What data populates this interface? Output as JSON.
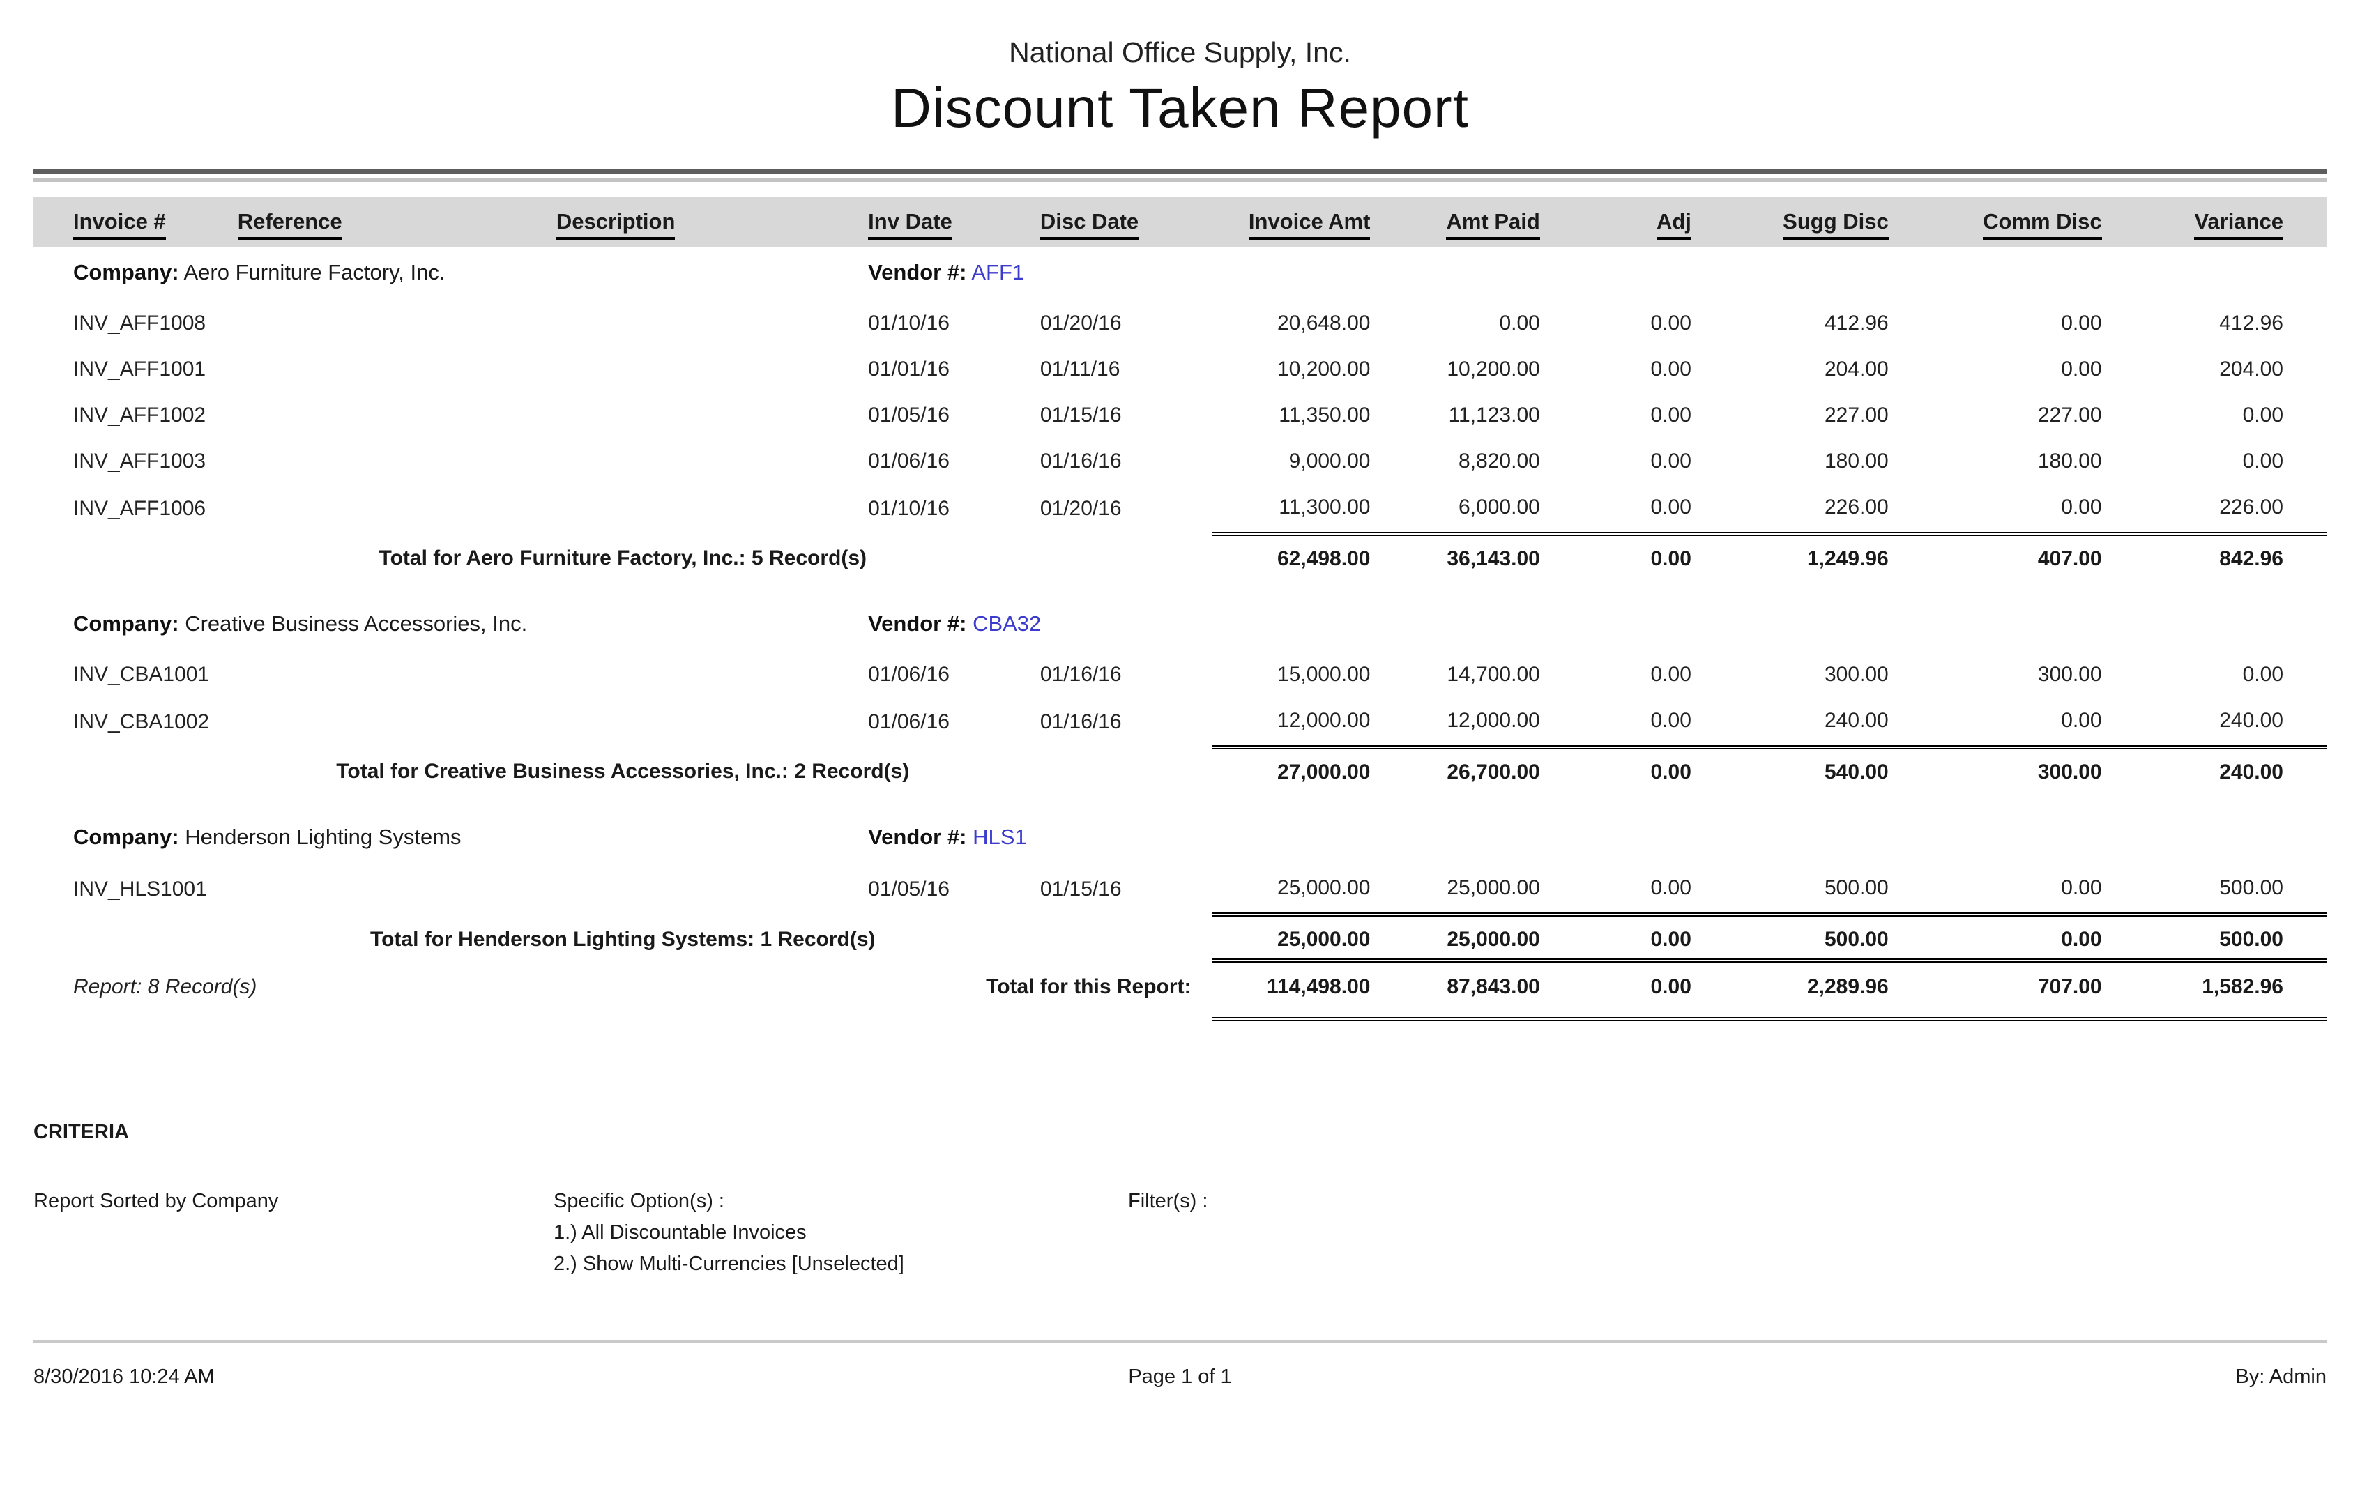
{
  "report": {
    "company_title": "National Office Supply, Inc.",
    "title": "Discount Taken Report",
    "columns": {
      "invoice": "Invoice #",
      "reference": "Reference",
      "description": "Description",
      "inv_date": "Inv Date",
      "disc_date": "Disc Date",
      "invoice_amt": "Invoice Amt",
      "amt_paid": "Amt Paid",
      "adj": "Adj",
      "sugg_disc": "Sugg Disc",
      "comm_disc": "Comm Disc",
      "variance": "Variance"
    },
    "company_label": "Company:",
    "vendor_label": "Vendor #:",
    "groups": [
      {
        "company": "Aero Furniture Factory, Inc.",
        "vendor": "AFF1",
        "rows": [
          {
            "invoice": "INV_AFF1008",
            "inv_date": "01/10/16",
            "disc_date": "01/20/16",
            "invoice_amt": "20,648.00",
            "amt_paid": "0.00",
            "adj": "0.00",
            "sugg_disc": "412.96",
            "comm_disc": "0.00",
            "variance": "412.96"
          },
          {
            "invoice": "INV_AFF1001",
            "inv_date": "01/01/16",
            "disc_date": "01/11/16",
            "invoice_amt": "10,200.00",
            "amt_paid": "10,200.00",
            "adj": "0.00",
            "sugg_disc": "204.00",
            "comm_disc": "0.00",
            "variance": "204.00"
          },
          {
            "invoice": "INV_AFF1002",
            "inv_date": "01/05/16",
            "disc_date": "01/15/16",
            "invoice_amt": "11,350.00",
            "amt_paid": "11,123.00",
            "adj": "0.00",
            "sugg_disc": "227.00",
            "comm_disc": "227.00",
            "variance": "0.00"
          },
          {
            "invoice": "INV_AFF1003",
            "inv_date": "01/06/16",
            "disc_date": "01/16/16",
            "invoice_amt": "9,000.00",
            "amt_paid": "8,820.00",
            "adj": "0.00",
            "sugg_disc": "180.00",
            "comm_disc": "180.00",
            "variance": "0.00"
          },
          {
            "invoice": "INV_AFF1006",
            "inv_date": "01/10/16",
            "disc_date": "01/20/16",
            "invoice_amt": "11,300.00",
            "amt_paid": "6,000.00",
            "adj": "0.00",
            "sugg_disc": "226.00",
            "comm_disc": "0.00",
            "variance": "226.00"
          }
        ],
        "total_label": "Total for Aero Furniture Factory, Inc.: 5 Record(s)",
        "totals": [
          "62,498.00",
          "36,143.00",
          "0.00",
          "1,249.96",
          "407.00",
          "842.96"
        ]
      },
      {
        "company": "Creative Business Accessories, Inc.",
        "vendor": "CBA32",
        "rows": [
          {
            "invoice": "INV_CBA1001",
            "inv_date": "01/06/16",
            "disc_date": "01/16/16",
            "invoice_amt": "15,000.00",
            "amt_paid": "14,700.00",
            "adj": "0.00",
            "sugg_disc": "300.00",
            "comm_disc": "300.00",
            "variance": "0.00"
          },
          {
            "invoice": "INV_CBA1002",
            "inv_date": "01/06/16",
            "disc_date": "01/16/16",
            "invoice_amt": "12,000.00",
            "amt_paid": "12,000.00",
            "adj": "0.00",
            "sugg_disc": "240.00",
            "comm_disc": "0.00",
            "variance": "240.00"
          }
        ],
        "total_label": "Total for Creative Business Accessories, Inc.: 2 Record(s)",
        "totals": [
          "27,000.00",
          "26,700.00",
          "0.00",
          "540.00",
          "300.00",
          "240.00"
        ]
      },
      {
        "company": "Henderson Lighting Systems",
        "vendor": "HLS1",
        "rows": [
          {
            "invoice": "INV_HLS1001",
            "inv_date": "01/05/16",
            "disc_date": "01/15/16",
            "invoice_amt": "25,000.00",
            "amt_paid": "25,000.00",
            "adj": "0.00",
            "sugg_disc": "500.00",
            "comm_disc": "0.00",
            "variance": "500.00"
          }
        ],
        "total_label": "Total for Henderson Lighting Systems: 1 Record(s)",
        "totals": [
          "25,000.00",
          "25,000.00",
          "0.00",
          "500.00",
          "0.00",
          "500.00"
        ]
      }
    ],
    "report_records": "Report: 8 Record(s)",
    "report_total_label": "Total for this Report:",
    "report_totals": [
      "114,498.00",
      "87,843.00",
      "0.00",
      "2,289.96",
      "707.00",
      "1,582.96"
    ]
  },
  "criteria": {
    "heading": "CRITERIA",
    "sorted_by": "Report Sorted by Company",
    "specific_options_label": "Specific Option(s) :",
    "options": [
      "1.) All Discountable Invoices",
      "2.) Show Multi-Currencies [Unselected]"
    ],
    "filters_label": "Filter(s) :"
  },
  "footer": {
    "datetime": "8/30/2016 10:24 AM",
    "page": "Page 1 of 1",
    "by": "By: Admin"
  },
  "colors": {
    "vendor_link": "#3c3ccc",
    "header_band": "#d8d8d8"
  }
}
